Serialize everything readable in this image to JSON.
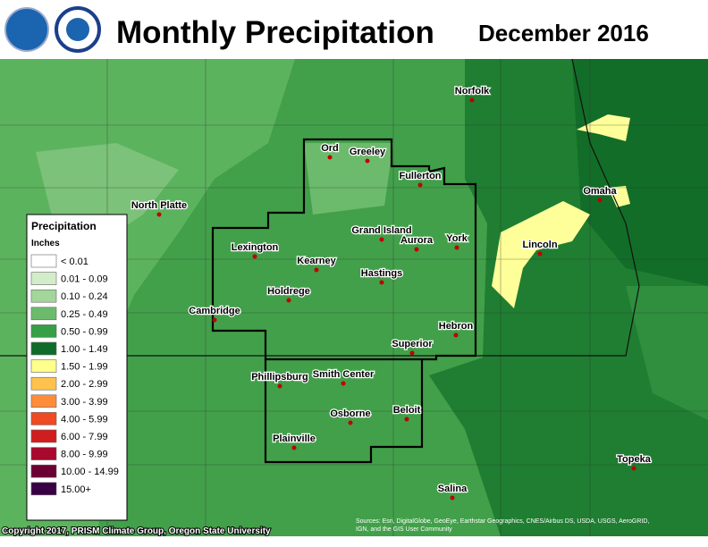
{
  "header": {
    "title": "Monthly Precipitation",
    "date": "December 2016"
  },
  "legend": {
    "title": "Precipitation",
    "units": "Inches",
    "entries": [
      {
        "label": "< 0.01",
        "color": "#ffffff"
      },
      {
        "label": "0.01 - 0.09",
        "color": "#d3ecc9"
      },
      {
        "label": "0.10 - 0.24",
        "color": "#a3d69a"
      },
      {
        "label": "0.25 - 0.49",
        "color": "#6cbb6c"
      },
      {
        "label": "0.50 - 0.99",
        "color": "#37a047"
      },
      {
        "label": "1.00 - 1.49",
        "color": "#0f6b2a"
      },
      {
        "label": "1.50 - 1.99",
        "color": "#ffff8c"
      },
      {
        "label": "2.00 - 2.99",
        "color": "#ffc24d"
      },
      {
        "label": "3.00 - 3.99",
        "color": "#ff8c3a"
      },
      {
        "label": "4.00 - 5.99",
        "color": "#f04a24"
      },
      {
        "label": "6.00 - 7.99",
        "color": "#d01d1d"
      },
      {
        "label": "8.00 - 9.99",
        "color": "#a8092e"
      },
      {
        "label": "10.00 - 14.99",
        "color": "#6d0033"
      },
      {
        "label": "15.00+",
        "color": "#3a0046"
      }
    ]
  },
  "cities": [
    "Norfolk",
    "Ord",
    "Greeley",
    "Fullerton",
    "Omaha",
    "North Platte",
    "Grand Island",
    "Aurora",
    "York",
    "Lincoln",
    "Lexington",
    "Kearney",
    "Hastings",
    "Holdrege",
    "Cambridge",
    "Hebron",
    "Superior",
    "Phillipsburg",
    "Smith Center",
    "Beloit",
    "Osborne",
    "Plainville",
    "Topeka",
    "Salina"
  ],
  "footer": {
    "copyright": "Copyright 2017, PRISM Climate Group, Oregon State University",
    "sources": [
      "Sources: Esri, DigitalGlobe, GeoEye, Earthstar Geographics, CNES/Airbus DS, USDA, USGS, AeroGRID,",
      "IGN, and the GIS User Community"
    ]
  }
}
